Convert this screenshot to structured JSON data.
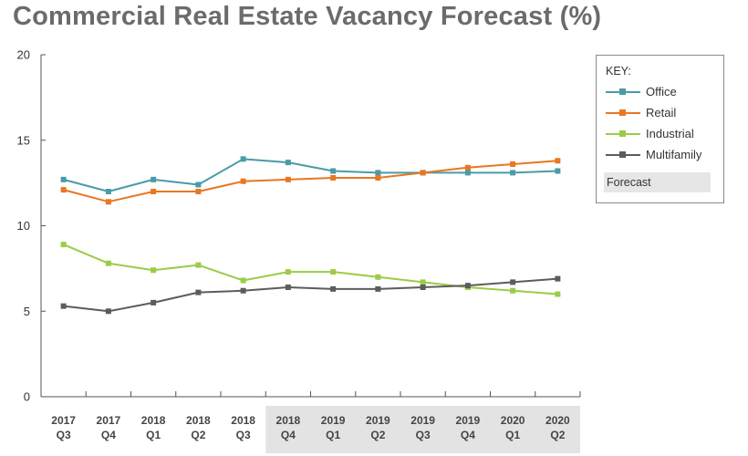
{
  "title": "Commercial Real Estate Vacancy Forecast (%)",
  "legend": {
    "title": "KEY:",
    "forecast_label": "Forecast"
  },
  "chart_data": {
    "type": "line",
    "title": "Commercial Real Estate Vacancy Forecast (%)",
    "xlabel": "",
    "ylabel": "",
    "ylim": [
      0,
      20
    ],
    "yticks": [
      0,
      5,
      10,
      15,
      20
    ],
    "categories": [
      [
        "2017",
        "Q3"
      ],
      [
        "2017",
        "Q4"
      ],
      [
        "2018",
        "Q1"
      ],
      [
        "2018",
        "Q2"
      ],
      [
        "2018",
        "Q3"
      ],
      [
        "2018",
        "Q4"
      ],
      [
        "2019",
        "Q1"
      ],
      [
        "2019",
        "Q2"
      ],
      [
        "2019",
        "Q3"
      ],
      [
        "2019",
        "Q4"
      ],
      [
        "2020",
        "Q1"
      ],
      [
        "2020",
        "Q2"
      ]
    ],
    "forecast_start_index": 5,
    "grid": false,
    "legend_position": "right",
    "series": [
      {
        "name": "Office",
        "color": "#4a9ba8",
        "values": [
          12.7,
          12.0,
          12.7,
          12.4,
          13.9,
          13.7,
          13.2,
          13.1,
          13.1,
          13.1,
          13.1,
          13.2
        ]
      },
      {
        "name": "Retail",
        "color": "#e87722",
        "values": [
          12.1,
          11.4,
          12.0,
          12.0,
          12.6,
          12.7,
          12.8,
          12.8,
          13.1,
          13.4,
          13.6,
          13.8
        ]
      },
      {
        "name": "Industrial",
        "color": "#9bcc47",
        "values": [
          8.9,
          7.8,
          7.4,
          7.7,
          6.8,
          7.3,
          7.3,
          7.0,
          6.7,
          6.4,
          6.2,
          6.0
        ]
      },
      {
        "name": "Multifamily",
        "color": "#5c5c5c",
        "values": [
          5.3,
          5.0,
          5.5,
          6.1,
          6.2,
          6.4,
          6.3,
          6.3,
          6.4,
          6.5,
          6.7,
          6.9
        ]
      }
    ]
  }
}
